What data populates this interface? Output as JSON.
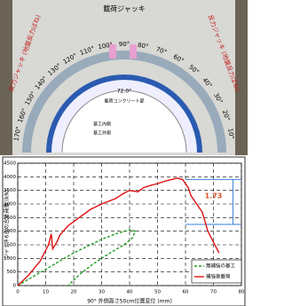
{
  "diagram": {
    "title": "載荷ジャッキ",
    "left_label": "反力ジャッキ (地盤反力ばね)",
    "right_label": "反力ジャッキ (地盤反力ばね)",
    "angles": [
      "170°",
      "160°",
      "150°",
      "140°",
      "130°",
      "120°",
      "110°",
      "100°",
      "90°",
      "80°",
      "70°",
      "60°",
      "50°",
      "40°",
      "30°",
      "20°",
      "10°"
    ],
    "inner_angle": "72.0°",
    "inner_text": "載荷コンクリート部",
    "inner_labels": [
      "基工内側",
      "基工外側"
    ]
  },
  "chart_data": {
    "type": "line",
    "xlabel": "90° 外側高さ50cm位置変位 (mm)",
    "ylabel": "ジャッキ6台の合計荷重 (kN)",
    "annotation": "1.73",
    "xlim": [
      0,
      80
    ],
    "xticks": [
      0,
      10,
      20,
      30,
      40,
      50,
      60,
      70,
      80
    ],
    "ylim": [
      0,
      4500
    ],
    "yticks": [
      0,
      500,
      1000,
      1500,
      2000,
      2500,
      3000,
      3500,
      4000,
      4500
    ],
    "grid": true,
    "series": [
      {
        "name": "無補強の基工",
        "color": "#1a9a1a",
        "dash": true,
        "x": [
          0,
          5,
          10,
          15,
          20,
          25,
          30,
          35,
          40,
          42,
          41,
          38,
          33,
          27,
          22,
          18
        ],
        "values": [
          0,
          300,
          600,
          900,
          1200,
          1450,
          1700,
          1900,
          2050,
          2000,
          1750,
          1500,
          1200,
          800,
          400,
          0
        ]
      },
      {
        "name": "補強後載荷",
        "color": "#e01010",
        "dash": false,
        "x": [
          0,
          4,
          8,
          11,
          12,
          12.5,
          14,
          15,
          18,
          22,
          26,
          30,
          35,
          38,
          40,
          43,
          45,
          48,
          50,
          53,
          55,
          57,
          59,
          61,
          62,
          64,
          66,
          68,
          70,
          72
        ],
        "values": [
          0,
          400,
          900,
          1500,
          1900,
          1350,
          1600,
          1850,
          2200,
          2500,
          2800,
          3000,
          3200,
          3400,
          3500,
          3450,
          3600,
          3700,
          3750,
          3850,
          3900,
          3950,
          3900,
          3600,
          3300,
          3000,
          2700,
          2000,
          1600,
          1200
        ]
      }
    ]
  }
}
